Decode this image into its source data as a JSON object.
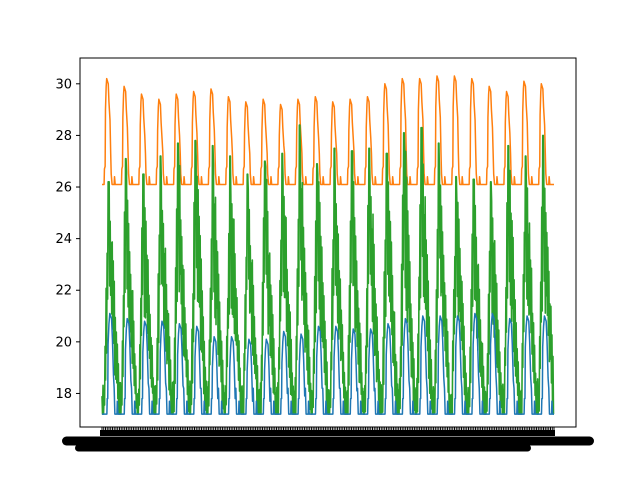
{
  "chart_data": {
    "type": "line",
    "title": "",
    "xlabel": "",
    "ylabel": "",
    "ylim": [
      16.7,
      31.0
    ],
    "yticks": [
      18,
      20,
      22,
      24,
      26,
      28,
      30
    ],
    "grid": false,
    "legend": "none",
    "x_tick_labels": "dense, overlapping and illegible",
    "cycles": 26,
    "series": [
      {
        "color": "#ff7f0e",
        "baseline": 26.1,
        "peaks": [
          30.2,
          29.9,
          29.6,
          29.4,
          29.6,
          29.7,
          29.8,
          29.5,
          29.3,
          29.4,
          29.2,
          29.4,
          29.5,
          29.3,
          29.4,
          29.5,
          30.0,
          30.2,
          30.2,
          30.3,
          30.3,
          30.2,
          29.9,
          29.7,
          30.1,
          30.0
        ]
      },
      {
        "color": "#2ca02c",
        "baseline": 17.2,
        "peaks": [
          26.2,
          27.1,
          26.5,
          27.2,
          27.7,
          27.8,
          27.6,
          27.2,
          26.5,
          27.0,
          27.3,
          28.4,
          26.9,
          27.5,
          27.4,
          27.5,
          27.3,
          28.1,
          28.3,
          27.7,
          26.4,
          26.3,
          26.2,
          27.6,
          27.2,
          28.0
        ]
      },
      {
        "color": "#1f77b4",
        "baseline": 17.2,
        "peaks": [
          21.1,
          20.9,
          20.8,
          20.8,
          20.7,
          20.6,
          20.2,
          20.2,
          20.1,
          20.1,
          20.4,
          20.3,
          20.6,
          20.6,
          20.5,
          20.5,
          20.7,
          20.9,
          21.0,
          21.0,
          21.0,
          21.1,
          21.1,
          20.9,
          21.0,
          21.0
        ]
      }
    ]
  }
}
